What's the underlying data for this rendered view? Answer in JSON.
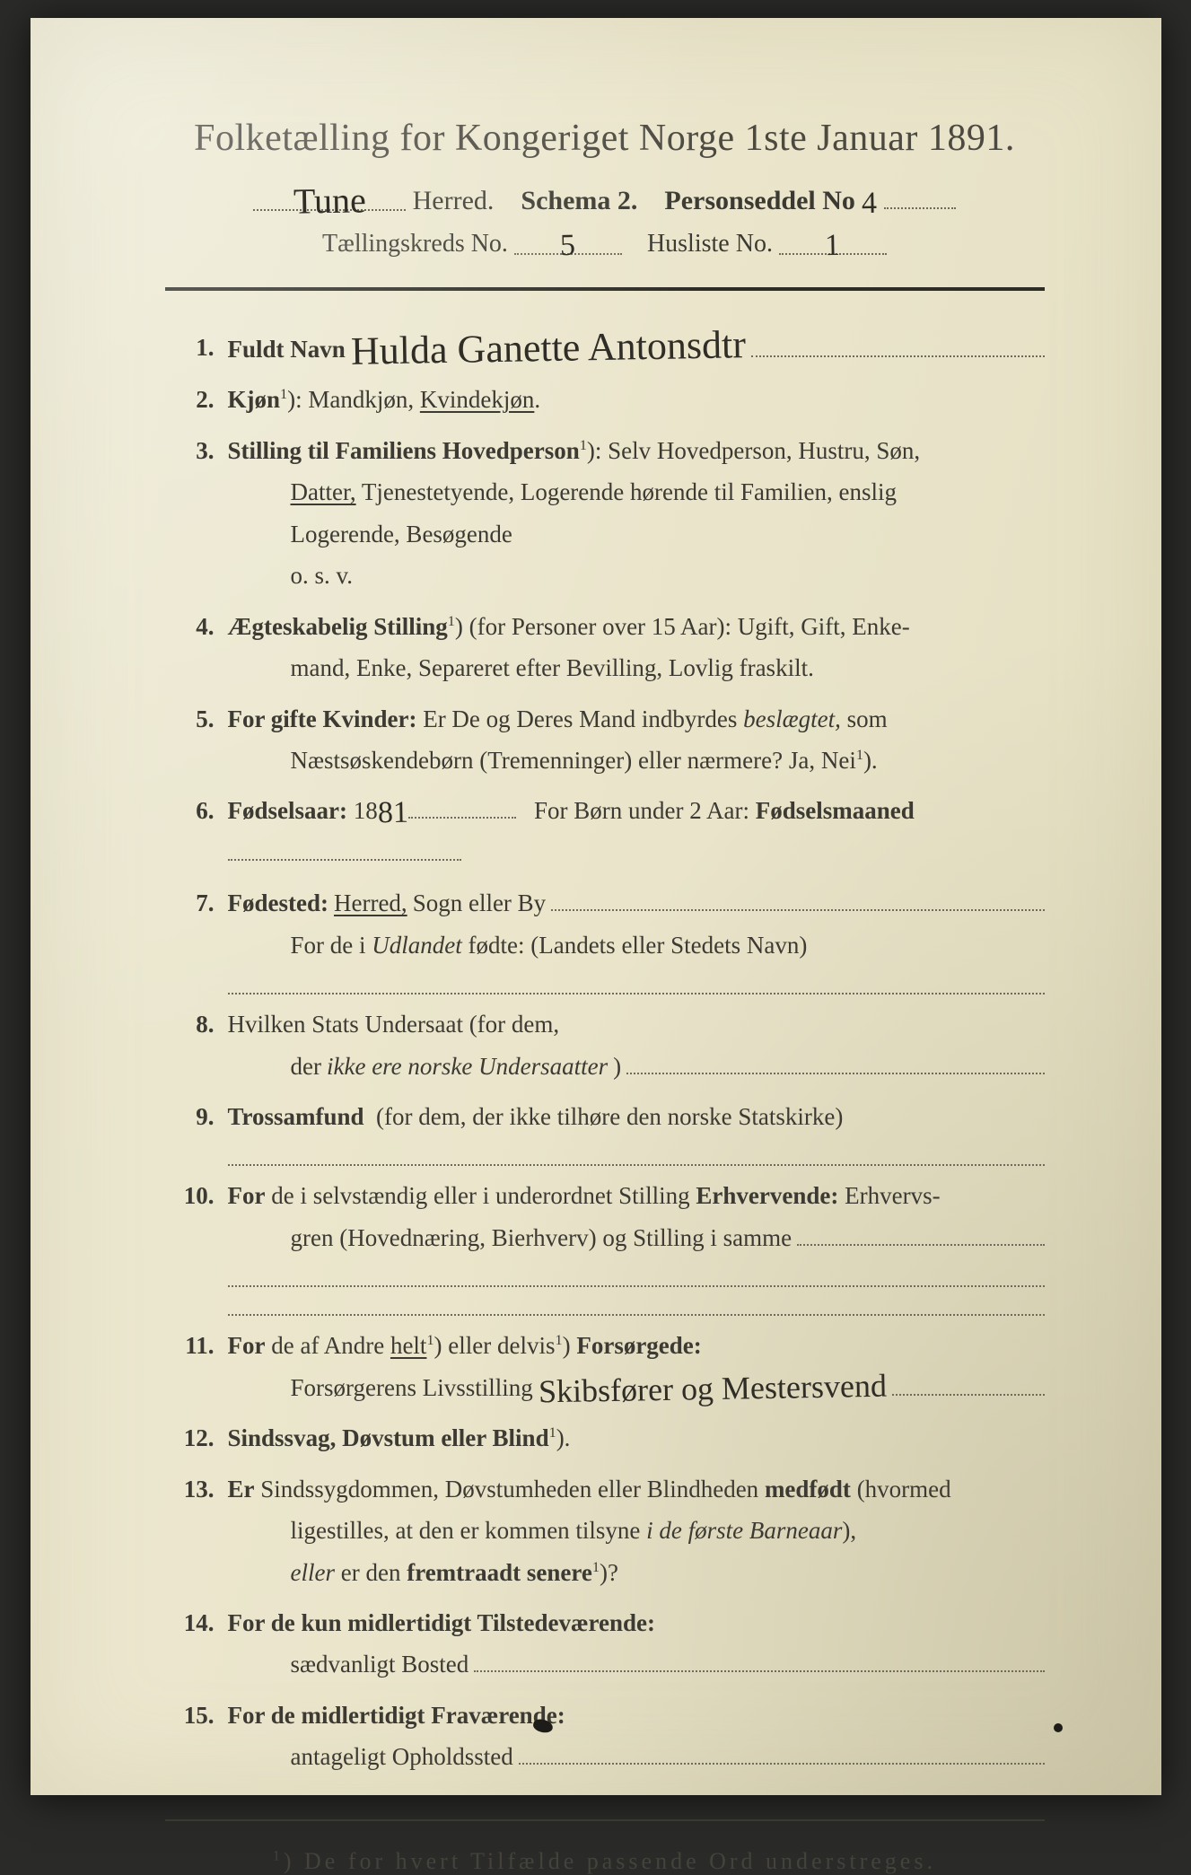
{
  "header": {
    "main_title": "Folketælling for Kongeriget Norge 1ste Januar 1891.",
    "herred_hand": "Tune",
    "herred_label": "Herred.",
    "schema_label": "Schema 2.",
    "person_label": "Personseddel No",
    "person_no_hand": "4",
    "kreds_label": "Tællingskreds No.",
    "kreds_no_hand": "5",
    "husliste_label": "Husliste No.",
    "husliste_no_hand": "1"
  },
  "items": {
    "i1": {
      "label": "Fuldt Navn",
      "hand": "Hulda Ganette Antonsdtr"
    },
    "i2": {
      "label": "Kjøn",
      "sup": "1",
      "opts_a": "Mandkjøn,",
      "opts_b_u": "Kvindekjøn",
      "period": "."
    },
    "i3": {
      "label": "Stilling til Familiens Hovedperson",
      "sup": "1",
      "line1": "Selv Hovedperson, Hustru, Søn,",
      "datter_u": "Datter,",
      "line2": "Tjenestetyende, Logerende hørende til Familien, enslig",
      "line3": "Logerende, Besøgende",
      "line4": "o. s. v."
    },
    "i4": {
      "label": "Ægteskabelig Stilling",
      "sup": "1",
      "paren": "(for Personer over 15 Aar):",
      "line1": "Ugift, Gift, Enke-",
      "line2": "mand, Enke, Separeret efter Bevilling, Lovlig fraskilt."
    },
    "i5": {
      "label": "For gifte Kvinder:",
      "line1a": "Er De og Deres Mand indbyrdes",
      "beslaegtet_it": "beslægtet,",
      "line1b": "som",
      "line2": "Næstsøskendebørn (Tremenninger) eller nærmere?  Ja, Nei",
      "sup": "1",
      "paren_end": ")."
    },
    "i6": {
      "label": "Fødselsaar:",
      "prefix_18": "18",
      "year_hand": "81",
      "line1": "For Børn under 2 Aar:",
      "maaned_b": "Fødselsmaaned"
    },
    "i7": {
      "label": "Fødested:",
      "herred_u": "Herred,",
      "line1": "Sogn eller By",
      "line2a": "For de i",
      "udlandet_it": "Udlandet",
      "line2b": "fødte: (Landets eller Stedets Navn)"
    },
    "i8": {
      "line1": "Hvilken Stats Undersaat  (for dem,",
      "line2a": "der",
      "ikke_it": "ikke ere norske Undersaatter",
      "paren": ")"
    },
    "i9": {
      "label": "Trossamfund",
      "line1": "(for dem, der ikke tilhøre den norske Statskirke)"
    },
    "i10": {
      "label_a": "For",
      "label_b": "de i selvstændig eller i underordnet Stilling",
      "erhv_b": "Erhvervende:",
      "line1": "Erhvervs-",
      "line2": "gren (Hovednæring, Bierhverv) og Stilling i samme"
    },
    "i11": {
      "label_a": "For",
      "label_b": "de af Andre",
      "helt_u": "helt",
      "sup1": "1",
      "eller": "eller",
      "delvis": "delvis",
      "sup2": "1",
      "fors_b": "Forsørgede:",
      "line2": "Forsørgerens Livsstilling",
      "hand": "Skibsfører og Mestersvend"
    },
    "i12": {
      "label": "Sindssvag, Døvstum eller Blind",
      "sup": "1",
      "paren": ")."
    },
    "i13": {
      "label_a": "Er",
      "line1": "Sindssygdommen, Døvstumheden eller Blindheden",
      "medfodt_b": "medfødt",
      "paren": "(hvormed",
      "line2a": "ligestilles, at den er kommen tilsyne",
      "it2": "i de første Barneaar",
      "line2b": "),",
      "eller_it": "eller",
      "line3a": "er den",
      "fremtraadt_b": "fremtraadt senere",
      "sup": "1",
      "q": ")?"
    },
    "i14": {
      "label": "For de kun midlertidigt Tilstedeværende:",
      "line2": "sædvanligt Bosted"
    },
    "i15": {
      "label": "For de midlertidigt Fraværende:",
      "line2": "antageligt Opholdssted"
    }
  },
  "footnote": {
    "sup": "1",
    "text": "De for hvert Tilfælde passende Ord understreges."
  },
  "colors": {
    "paper_bg_a": "#ece9d4",
    "paper_bg_b": "#e3ddbf",
    "ink": "#3a3a34",
    "dot": "#6f6b5c",
    "rule": "#2d2c26"
  }
}
